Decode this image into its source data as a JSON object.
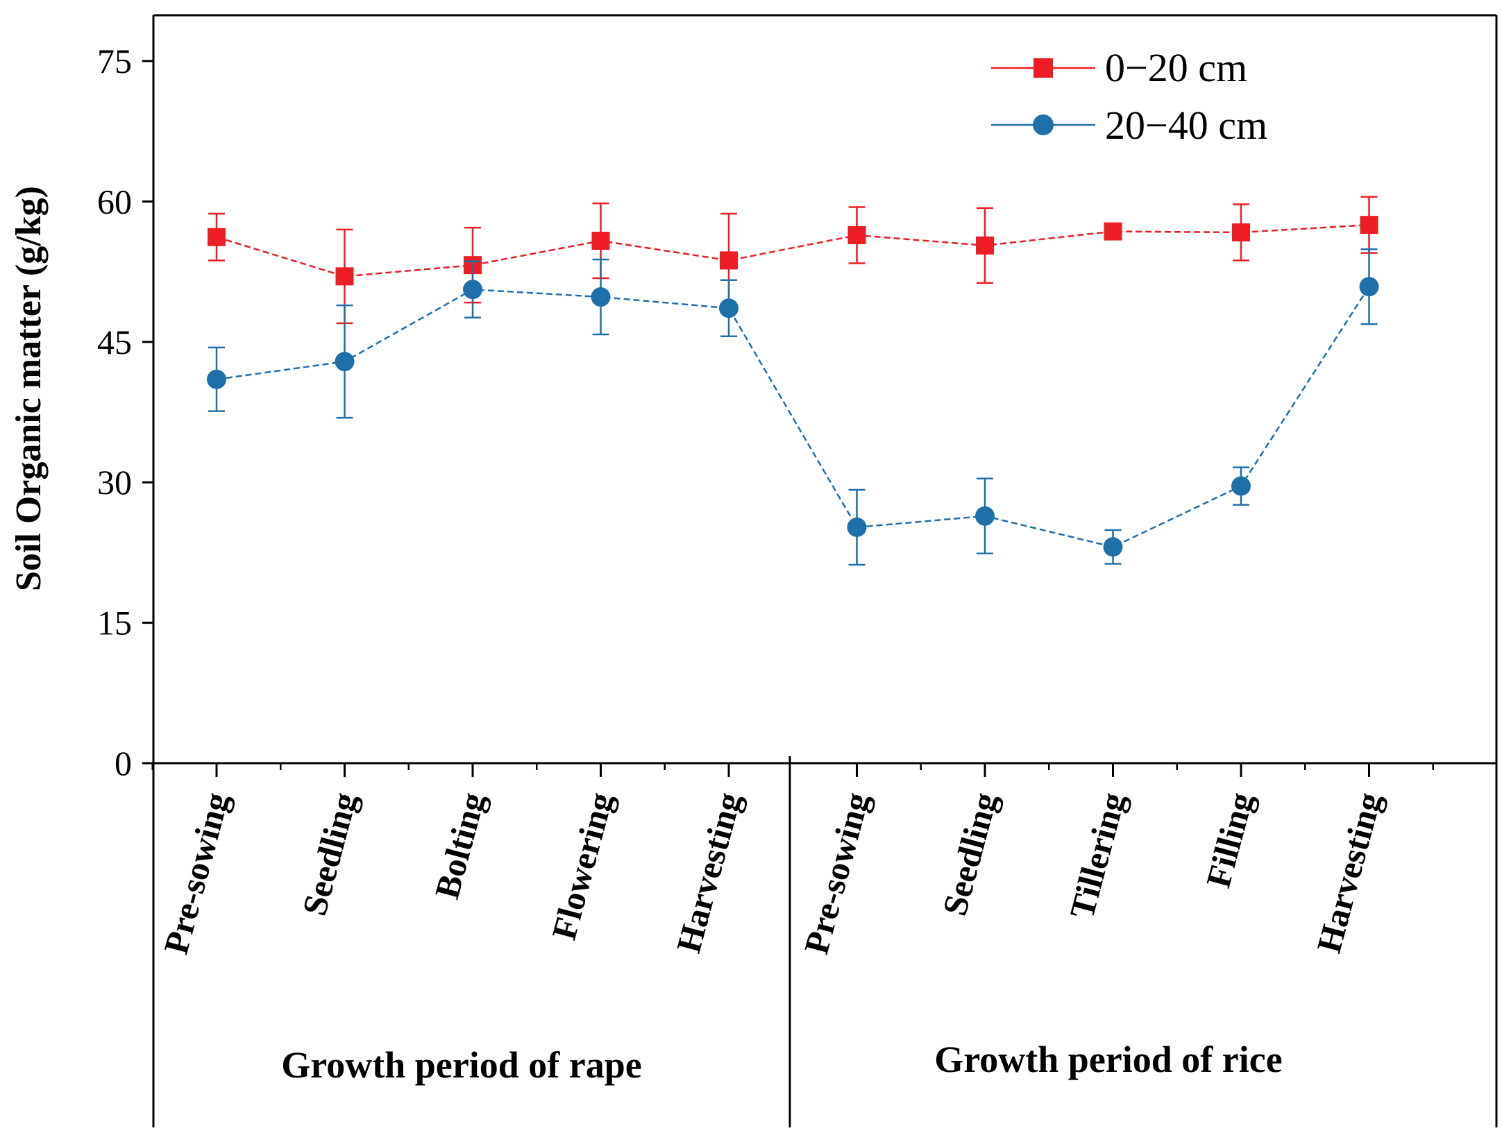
{
  "chart_data": {
    "type": "line",
    "title": "",
    "ylabel": "Soil Organic matter (g/kg)",
    "xlabel": "",
    "ylim": [
      0,
      75
    ],
    "yticks": [
      0,
      15,
      30,
      45,
      60,
      75
    ],
    "grid": false,
    "legend_position": "top-right",
    "categories": [
      "Pre-sowing",
      "Seedling",
      "Bolting",
      "Flowering",
      "Harvesting",
      "Pre-sowing",
      "Seedling",
      "Tillering",
      "Filling",
      "Harvesting"
    ],
    "groups": [
      {
        "label": "Growth period of rape",
        "categories": [
          "Pre-sowing",
          "Seedling",
          "Bolting",
          "Flowering",
          "Harvesting"
        ]
      },
      {
        "label": "Growth period of rice",
        "categories": [
          "Pre-sowing",
          "Seedling",
          "Tillering",
          "Filling",
          "Harvesting"
        ]
      }
    ],
    "series": [
      {
        "name": "0−20 cm",
        "color": "#ee1c24",
        "marker": "square",
        "values": [
          56.2,
          52.0,
          53.2,
          55.8,
          53.7,
          56.4,
          55.3,
          56.8,
          56.7,
          57.5
        ],
        "errors": [
          2.5,
          5.0,
          4.0,
          4.0,
          5.0,
          3.0,
          4.0,
          0.3,
          3.0,
          3.0
        ]
      },
      {
        "name": "20−40 cm",
        "color": "#1f6fa8",
        "marker": "circle",
        "values": [
          41.0,
          42.9,
          50.6,
          49.8,
          48.6,
          25.2,
          26.4,
          23.1,
          29.6,
          50.9
        ],
        "errors": [
          3.4,
          6.0,
          3.0,
          4.0,
          3.0,
          4.0,
          4.0,
          1.8,
          2.0,
          4.0
        ]
      }
    ]
  }
}
